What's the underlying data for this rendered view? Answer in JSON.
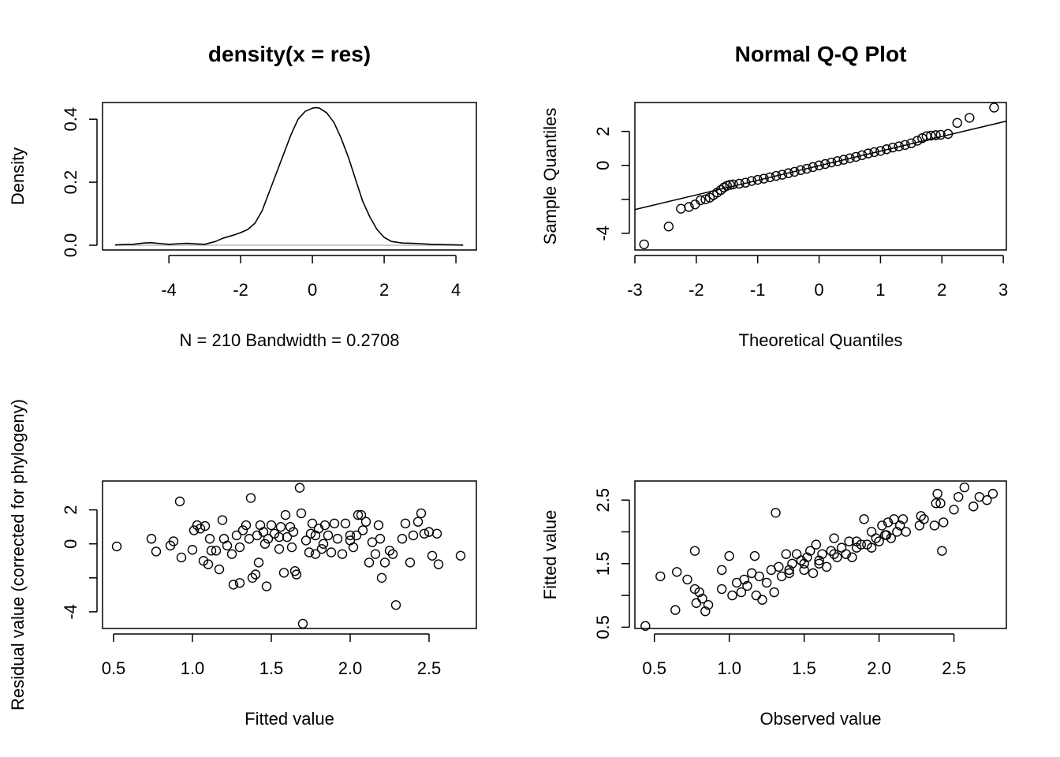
{
  "chart_data": [
    {
      "type": "line",
      "title": "density(x = res)",
      "xlabel": "N = 210   Bandwidth = 0.2708",
      "ylabel": "Density",
      "xlim": [
        -5.85,
        4.57
      ],
      "ylim": [
        -0.015,
        0.453
      ],
      "xticks": [
        -4,
        -2,
        0,
        2,
        4
      ],
      "xtick_labels": [
        "-4",
        "-2",
        "0",
        "2",
        "4"
      ],
      "yticks": [
        0.0,
        0.2,
        0.4
      ],
      "ytick_labels": [
        "0.0",
        "0.2",
        "0.4"
      ],
      "hline": 0,
      "x": [
        -5.5,
        -5.0,
        -4.7,
        -4.5,
        -4.2,
        -4.0,
        -3.7,
        -3.5,
        -3.2,
        -3.0,
        -2.7,
        -2.5,
        -2.2,
        -2.0,
        -1.8,
        -1.6,
        -1.4,
        -1.2,
        -1.0,
        -0.8,
        -0.6,
        -0.4,
        -0.2,
        0.0,
        0.1,
        0.2,
        0.4,
        0.6,
        0.8,
        1.0,
        1.2,
        1.4,
        1.6,
        1.8,
        2.0,
        2.2,
        2.5,
        2.8,
        3.0,
        3.3,
        3.6,
        4.0,
        4.2
      ],
      "y": [
        0.001,
        0.003,
        0.007,
        0.008,
        0.005,
        0.003,
        0.005,
        0.006,
        0.004,
        0.003,
        0.012,
        0.022,
        0.032,
        0.04,
        0.05,
        0.07,
        0.11,
        0.17,
        0.23,
        0.29,
        0.35,
        0.4,
        0.425,
        0.435,
        0.437,
        0.435,
        0.42,
        0.39,
        0.34,
        0.28,
        0.21,
        0.14,
        0.09,
        0.05,
        0.025,
        0.012,
        0.007,
        0.006,
        0.005,
        0.003,
        0.002,
        0.001,
        0.0005
      ]
    },
    {
      "type": "scatter",
      "title": "Normal Q-Q Plot",
      "xlabel": "Theoretical Quantiles",
      "ylabel": "Sample Quantiles",
      "xlim": [
        -3.0,
        3.05
      ],
      "ylim": [
        -4.98,
        3.7
      ],
      "xticks": [
        -3,
        -2,
        -1,
        0,
        1,
        2,
        3
      ],
      "xtick_labels": [
        "-3",
        "-2",
        "-1",
        "0",
        "1",
        "2",
        "3"
      ],
      "yticks": [
        -4,
        -2,
        0,
        2
      ],
      "ytick_labels": [
        "-4",
        "",
        "0",
        "2"
      ],
      "qqline": {
        "slope": 0.86,
        "intercept": -0.02
      },
      "points": [
        [
          -2.85,
          -4.65
        ],
        [
          -2.45,
          -3.6
        ],
        [
          -2.25,
          -2.55
        ],
        [
          -2.12,
          -2.45
        ],
        [
          -2.02,
          -2.3
        ],
        [
          -1.93,
          -2.05
        ],
        [
          -1.85,
          -2.0
        ],
        [
          -1.78,
          -1.9
        ],
        [
          -1.72,
          -1.75
        ],
        [
          -1.66,
          -1.6
        ],
        [
          -1.6,
          -1.45
        ],
        [
          -1.55,
          -1.3
        ],
        [
          -1.5,
          -1.2
        ],
        [
          -1.45,
          -1.15
        ],
        [
          -1.4,
          -1.12
        ],
        [
          -1.3,
          -1.08
        ],
        [
          -1.2,
          -1.02
        ],
        [
          -1.1,
          -0.92
        ],
        [
          -1.0,
          -0.85
        ],
        [
          -0.9,
          -0.78
        ],
        [
          -0.8,
          -0.7
        ],
        [
          -0.7,
          -0.62
        ],
        [
          -0.6,
          -0.55
        ],
        [
          -0.5,
          -0.46
        ],
        [
          -0.4,
          -0.38
        ],
        [
          -0.3,
          -0.28
        ],
        [
          -0.2,
          -0.2
        ],
        [
          -0.1,
          -0.1
        ],
        [
          0.0,
          0.0
        ],
        [
          0.1,
          0.08
        ],
        [
          0.2,
          0.17
        ],
        [
          0.3,
          0.25
        ],
        [
          0.4,
          0.33
        ],
        [
          0.5,
          0.42
        ],
        [
          0.6,
          0.5
        ],
        [
          0.7,
          0.6
        ],
        [
          0.8,
          0.7
        ],
        [
          0.9,
          0.78
        ],
        [
          1.0,
          0.85
        ],
        [
          1.1,
          0.95
        ],
        [
          1.2,
          1.05
        ],
        [
          1.3,
          1.12
        ],
        [
          1.4,
          1.2
        ],
        [
          1.5,
          1.3
        ],
        [
          1.6,
          1.45
        ],
        [
          1.68,
          1.6
        ],
        [
          1.75,
          1.72
        ],
        [
          1.82,
          1.75
        ],
        [
          1.9,
          1.78
        ],
        [
          1.98,
          1.8
        ],
        [
          2.1,
          1.85
        ],
        [
          2.25,
          2.5
        ],
        [
          2.45,
          2.8
        ],
        [
          2.85,
          3.4
        ]
      ]
    },
    {
      "type": "scatter",
      "title": "",
      "xlabel": "Fitted value",
      "ylabel": "Residual value (corrected for phylogeny)",
      "xlim": [
        0.43,
        2.8
      ],
      "ylim": [
        -4.98,
        3.7
      ],
      "xticks": [
        0.5,
        1.0,
        1.5,
        2.0,
        2.5
      ],
      "xtick_labels": [
        "0.5",
        "1.0",
        "1.5",
        "2.0",
        "2.5"
      ],
      "yticks": [
        -4,
        -2,
        0,
        2
      ],
      "ytick_labels": [
        "-4",
        "",
        "0",
        "2"
      ],
      "points": [
        [
          0.52,
          -0.15
        ],
        [
          0.74,
          0.3
        ],
        [
          0.77,
          -0.45
        ],
        [
          0.86,
          -0.1
        ],
        [
          0.88,
          0.15
        ],
        [
          0.92,
          2.5
        ],
        [
          0.93,
          -0.8
        ],
        [
          1.0,
          -0.35
        ],
        [
          1.01,
          0.8
        ],
        [
          1.03,
          1.1
        ],
        [
          1.05,
          0.9
        ],
        [
          1.07,
          -1.0
        ],
        [
          1.08,
          1.05
        ],
        [
          1.1,
          -1.2
        ],
        [
          1.11,
          0.3
        ],
        [
          1.12,
          -0.4
        ],
        [
          1.15,
          -0.4
        ],
        [
          1.17,
          -1.5
        ],
        [
          1.19,
          1.4
        ],
        [
          1.2,
          0.3
        ],
        [
          1.22,
          -0.1
        ],
        [
          1.25,
          -0.6
        ],
        [
          1.26,
          -2.4
        ],
        [
          1.28,
          0.5
        ],
        [
          1.3,
          -2.3
        ],
        [
          1.32,
          0.8
        ],
        [
          1.34,
          1.1
        ],
        [
          1.36,
          0.3
        ],
        [
          1.37,
          2.7
        ],
        [
          1.38,
          -2.0
        ],
        [
          1.4,
          -1.8
        ],
        [
          1.41,
          0.5
        ],
        [
          1.42,
          -1.1
        ],
        [
          1.43,
          1.1
        ],
        [
          1.45,
          0.7
        ],
        [
          1.47,
          -2.5
        ],
        [
          1.48,
          0.3
        ],
        [
          1.5,
          1.1
        ],
        [
          1.52,
          0.6
        ],
        [
          1.55,
          -0.3
        ],
        [
          1.56,
          1.0
        ],
        [
          1.58,
          -1.7
        ],
        [
          1.59,
          1.7
        ],
        [
          1.6,
          0.4
        ],
        [
          1.62,
          1.0
        ],
        [
          1.63,
          -0.2
        ],
        [
          1.65,
          -1.6
        ],
        [
          1.66,
          -1.8
        ],
        [
          1.68,
          3.3
        ],
        [
          1.69,
          1.8
        ],
        [
          1.7,
          -4.7
        ],
        [
          1.72,
          0.2
        ],
        [
          1.74,
          -0.5
        ],
        [
          1.76,
          1.2
        ],
        [
          1.78,
          0.5
        ],
        [
          1.8,
          0.9
        ],
        [
          1.82,
          -0.3
        ],
        [
          1.84,
          1.1
        ],
        [
          1.86,
          0.5
        ],
        [
          1.88,
          -0.5
        ],
        [
          1.9,
          1.2
        ],
        [
          1.92,
          0.3
        ],
        [
          1.95,
          -0.6
        ],
        [
          1.97,
          1.2
        ],
        [
          2.0,
          0.2
        ],
        [
          2.02,
          -0.2
        ],
        [
          2.04,
          0.5
        ],
        [
          2.05,
          1.7
        ],
        [
          2.07,
          1.7
        ],
        [
          2.08,
          0.8
        ],
        [
          2.1,
          1.3
        ],
        [
          2.12,
          -1.1
        ],
        [
          2.14,
          0.1
        ],
        [
          2.16,
          -0.6
        ],
        [
          2.18,
          1.1
        ],
        [
          2.19,
          0.3
        ],
        [
          2.2,
          -2.0
        ],
        [
          2.22,
          -1.1
        ],
        [
          2.25,
          -0.4
        ],
        [
          2.27,
          -0.6
        ],
        [
          2.29,
          -3.6
        ],
        [
          2.33,
          0.3
        ],
        [
          2.35,
          1.2
        ],
        [
          2.38,
          -1.1
        ],
        [
          2.4,
          0.5
        ],
        [
          2.43,
          1.3
        ],
        [
          2.45,
          1.8
        ],
        [
          2.47,
          0.6
        ],
        [
          2.5,
          0.7
        ],
        [
          2.52,
          -0.7
        ],
        [
          2.55,
          0.6
        ],
        [
          2.56,
          -1.2
        ],
        [
          2.7,
          -0.7
        ],
        [
          1.75,
          0.6
        ],
        [
          1.83,
          0.0
        ],
        [
          1.46,
          0.0
        ],
        [
          1.55,
          0.4
        ],
        [
          1.64,
          0.7
        ],
        [
          1.3,
          -0.2
        ],
        [
          1.78,
          -0.6
        ],
        [
          2.0,
          0.5
        ]
      ]
    },
    {
      "type": "scatter",
      "title": "",
      "xlabel": "Observed value",
      "ylabel": "Fitted value",
      "xlim": [
        0.37,
        2.85
      ],
      "ylim": [
        0.48,
        2.8
      ],
      "xticks": [
        0.5,
        1.0,
        1.5,
        2.0,
        2.5
      ],
      "xtick_labels": [
        "0.5",
        "1.0",
        "1.5",
        "2.0",
        "2.5"
      ],
      "yticks": [
        0.5,
        1.0,
        1.5,
        2.0,
        2.5
      ],
      "ytick_labels": [
        "0.5",
        "",
        "1.5",
        "",
        "2.5"
      ],
      "points": [
        [
          0.44,
          0.52
        ],
        [
          0.54,
          1.3
        ],
        [
          0.64,
          0.77
        ],
        [
          0.65,
          1.37
        ],
        [
          0.72,
          1.25
        ],
        [
          0.77,
          1.1
        ],
        [
          0.77,
          1.7
        ],
        [
          0.78,
          0.88
        ],
        [
          0.8,
          1.05
        ],
        [
          0.82,
          0.95
        ],
        [
          0.84,
          0.75
        ],
        [
          0.86,
          0.85
        ],
        [
          0.95,
          1.4
        ],
        [
          0.95,
          1.1
        ],
        [
          1.0,
          1.62
        ],
        [
          1.02,
          1.0
        ],
        [
          1.05,
          1.2
        ],
        [
          1.08,
          1.05
        ],
        [
          1.1,
          1.25
        ],
        [
          1.12,
          1.15
        ],
        [
          1.15,
          1.35
        ],
        [
          1.17,
          1.62
        ],
        [
          1.18,
          1.0
        ],
        [
          1.2,
          1.3
        ],
        [
          1.22,
          0.93
        ],
        [
          1.25,
          1.2
        ],
        [
          1.28,
          1.4
        ],
        [
          1.3,
          1.05
        ],
        [
          1.31,
          2.3
        ],
        [
          1.33,
          1.45
        ],
        [
          1.35,
          1.3
        ],
        [
          1.38,
          1.65
        ],
        [
          1.4,
          1.4
        ],
        [
          1.42,
          1.5
        ],
        [
          1.45,
          1.65
        ],
        [
          1.48,
          1.55
        ],
        [
          1.5,
          1.4
        ],
        [
          1.52,
          1.6
        ],
        [
          1.54,
          1.7
        ],
        [
          1.56,
          1.35
        ],
        [
          1.58,
          1.8
        ],
        [
          1.6,
          1.5
        ],
        [
          1.62,
          1.65
        ],
        [
          1.65,
          1.45
        ],
        [
          1.68,
          1.7
        ],
        [
          1.7,
          1.9
        ],
        [
          1.72,
          1.6
        ],
        [
          1.75,
          1.75
        ],
        [
          1.78,
          1.65
        ],
        [
          1.8,
          1.85
        ],
        [
          1.82,
          1.6
        ],
        [
          1.85,
          1.75
        ],
        [
          1.88,
          1.8
        ],
        [
          1.9,
          2.2
        ],
        [
          1.92,
          1.8
        ],
        [
          1.95,
          2.0
        ],
        [
          1.98,
          1.9
        ],
        [
          2.0,
          1.85
        ],
        [
          2.02,
          2.1
        ],
        [
          2.04,
          1.95
        ],
        [
          2.06,
          2.15
        ],
        [
          2.08,
          1.9
        ],
        [
          2.1,
          2.2
        ],
        [
          2.12,
          2.0
        ],
        [
          2.14,
          2.1
        ],
        [
          2.16,
          2.2
        ],
        [
          2.18,
          2.0
        ],
        [
          2.27,
          2.1
        ],
        [
          2.28,
          2.25
        ],
        [
          2.3,
          2.2
        ],
        [
          2.37,
          2.1
        ],
        [
          2.38,
          2.45
        ],
        [
          2.39,
          2.6
        ],
        [
          2.41,
          2.45
        ],
        [
          2.42,
          1.7
        ],
        [
          2.43,
          2.15
        ],
        [
          2.5,
          2.35
        ],
        [
          2.53,
          2.55
        ],
        [
          2.57,
          2.7
        ],
        [
          2.63,
          2.4
        ],
        [
          2.67,
          2.55
        ],
        [
          2.72,
          2.5
        ],
        [
          2.76,
          2.6
        ],
        [
          1.6,
          1.55
        ],
        [
          1.7,
          1.65
        ],
        [
          1.95,
          1.75
        ],
        [
          2.05,
          1.95
        ],
        [
          1.5,
          1.5
        ],
        [
          1.4,
          1.35
        ],
        [
          1.85,
          1.85
        ]
      ]
    }
  ]
}
